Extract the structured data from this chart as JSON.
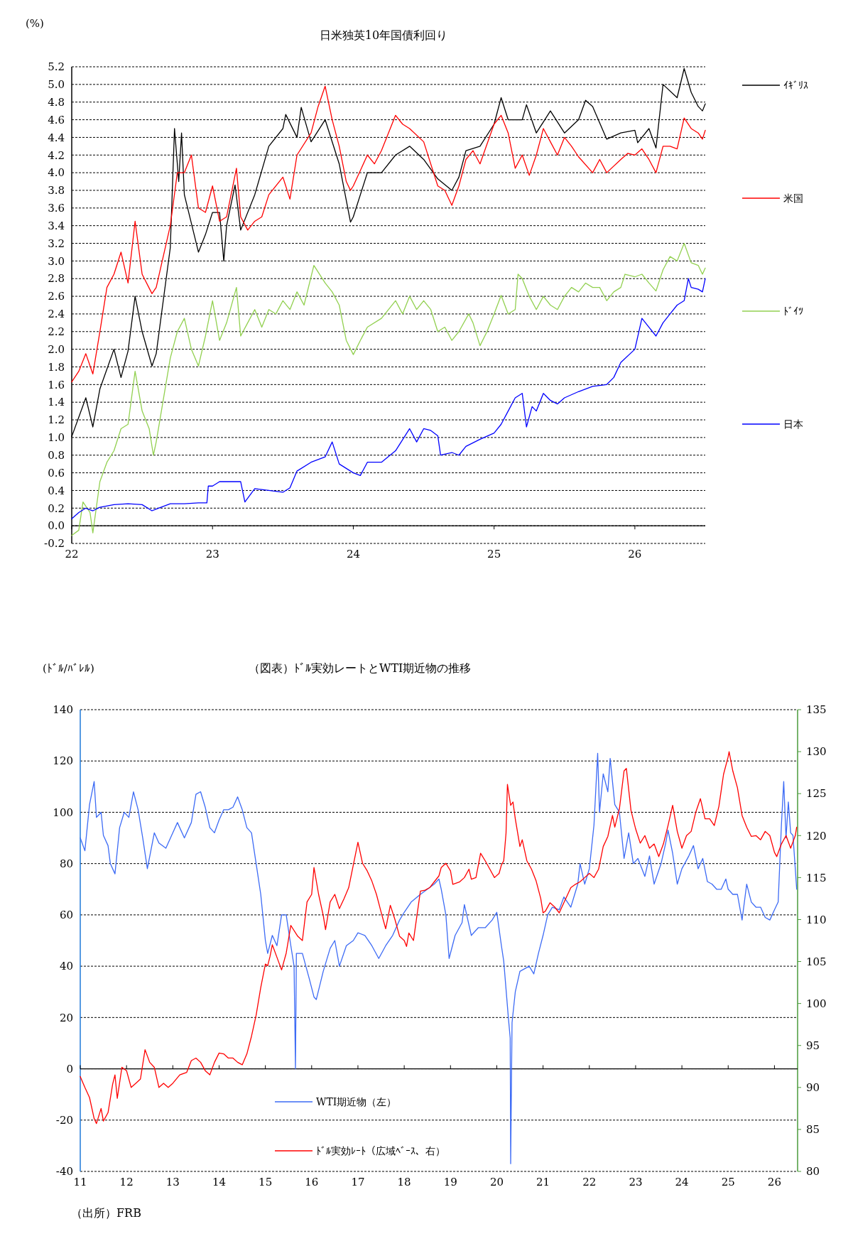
{
  "chart_data": [
    {
      "type": "line",
      "title": "日米独英10年国債利回り",
      "ylabel": "(%)",
      "xlim": [
        22,
        26.5
      ],
      "xticks": [
        22,
        23,
        24,
        25,
        26
      ],
      "ylim": [
        -0.2,
        5.2
      ],
      "yticks": [
        -0.2,
        {
          "value": 0,
          "label": "0.0"
        },
        0.2,
        0.4,
        0.6,
        0.8,
        {
          "value": 1,
          "label": "1.0"
        },
        1.2,
        1.4,
        1.6,
        1.8,
        {
          "value": 2,
          "label": "2.0"
        },
        2.2,
        2.4,
        2.6,
        2.8,
        {
          "value": 3,
          "label": "3.0"
        },
        3.2,
        3.4,
        3.6,
        3.8,
        {
          "value": 4,
          "label": "4.0"
        },
        4.2,
        4.4,
        4.6,
        4.8,
        {
          "value": 5,
          "label": "5.0"
        },
        5.2
      ],
      "grid": "y",
      "legend": "right",
      "marker": "none",
      "line_style": "solid",
      "series": [
        {
          "name": "ｲｷﾞﾘｽ",
          "color": "#000000",
          "x": [
            22.0,
            22.1,
            22.15,
            22.2,
            22.3,
            22.35,
            22.4,
            22.45,
            22.5,
            22.57,
            22.6,
            22.7,
            22.73,
            22.76,
            22.78,
            22.8,
            22.9,
            22.95,
            23.0,
            23.05,
            23.08,
            23.1,
            23.16,
            23.2,
            23.3,
            23.4,
            23.5,
            23.52,
            23.6,
            23.63,
            23.7,
            23.8,
            23.9,
            23.98,
            24.0,
            24.1,
            24.2,
            24.3,
            24.4,
            24.5,
            24.6,
            24.7,
            24.75,
            24.8,
            24.9,
            25.0,
            25.05,
            25.1,
            25.2,
            25.23,
            25.3,
            25.4,
            25.5,
            25.6,
            25.65,
            25.7,
            25.8,
            25.9,
            26.0,
            26.02,
            26.1,
            26.15,
            26.2,
            26.3,
            26.35,
            26.4,
            26.45,
            26.48,
            26.5
          ],
          "values": [
            1.01,
            1.45,
            1.12,
            1.55,
            2.0,
            1.68,
            1.98,
            2.6,
            2.2,
            1.81,
            1.95,
            3.15,
            4.5,
            3.9,
            4.45,
            3.75,
            3.1,
            3.3,
            3.55,
            3.55,
            3.0,
            3.4,
            3.86,
            3.35,
            3.75,
            4.3,
            4.5,
            4.66,
            4.4,
            4.74,
            4.35,
            4.6,
            4.1,
            3.44,
            3.5,
            4.0,
            4.0,
            4.2,
            4.3,
            4.15,
            3.93,
            3.8,
            3.95,
            4.25,
            4.3,
            4.55,
            4.85,
            4.6,
            4.6,
            4.77,
            4.45,
            4.7,
            4.45,
            4.6,
            4.82,
            4.75,
            4.38,
            4.45,
            4.48,
            4.34,
            4.5,
            4.28,
            5.0,
            4.85,
            5.18,
            4.91,
            4.75,
            4.7,
            4.78
          ]
        },
        {
          "name": "米国",
          "color": "#ff0000",
          "x": [
            22.0,
            22.05,
            22.1,
            22.15,
            22.2,
            22.25,
            22.3,
            22.35,
            22.4,
            22.45,
            22.5,
            22.57,
            22.6,
            22.7,
            22.75,
            22.8,
            22.85,
            22.9,
            22.95,
            23.0,
            23.05,
            23.1,
            23.17,
            23.2,
            23.25,
            23.3,
            23.35,
            23.4,
            23.5,
            23.55,
            23.6,
            23.7,
            23.75,
            23.8,
            23.85,
            23.9,
            23.95,
            23.98,
            24.0,
            24.1,
            24.15,
            24.2,
            24.3,
            24.35,
            24.4,
            24.5,
            24.6,
            24.65,
            24.7,
            24.75,
            24.8,
            24.85,
            24.9,
            25.0,
            25.05,
            25.1,
            25.15,
            25.2,
            25.25,
            25.3,
            25.35,
            25.4,
            25.45,
            25.5,
            25.55,
            25.6,
            25.7,
            25.75,
            25.8,
            25.9,
            25.95,
            26.0,
            26.05,
            26.1,
            26.15,
            26.2,
            26.25,
            26.3,
            26.35,
            26.4,
            26.45,
            26.48,
            26.5
          ],
          "values": [
            1.63,
            1.75,
            1.95,
            1.72,
            2.2,
            2.7,
            2.85,
            3.1,
            2.75,
            3.45,
            2.85,
            2.63,
            2.7,
            3.4,
            4.0,
            4.0,
            4.2,
            3.6,
            3.55,
            3.85,
            3.45,
            3.5,
            4.05,
            3.5,
            3.35,
            3.45,
            3.5,
            3.75,
            3.95,
            3.7,
            4.2,
            4.45,
            4.75,
            4.98,
            4.6,
            4.3,
            3.9,
            3.8,
            3.85,
            4.2,
            4.1,
            4.25,
            4.65,
            4.55,
            4.5,
            4.35,
            3.85,
            3.8,
            3.63,
            3.85,
            4.15,
            4.25,
            4.1,
            4.55,
            4.65,
            4.45,
            4.05,
            4.2,
            3.97,
            4.2,
            4.5,
            4.35,
            4.2,
            4.4,
            4.3,
            4.18,
            4.0,
            4.15,
            4.0,
            4.15,
            4.22,
            4.2,
            4.27,
            4.15,
            4.0,
            4.3,
            4.3,
            4.27,
            4.62,
            4.5,
            4.45,
            4.38,
            4.48
          ]
        },
        {
          "name": "ﾄﾞｲﾂ",
          "color": "#92d050",
          "x": [
            22.0,
            22.05,
            22.08,
            22.13,
            22.15,
            22.2,
            22.25,
            22.3,
            22.35,
            22.4,
            22.45,
            22.5,
            22.55,
            22.58,
            22.6,
            22.7,
            22.75,
            22.8,
            22.85,
            22.9,
            22.95,
            23.0,
            23.05,
            23.1,
            23.17,
            23.2,
            23.25,
            23.3,
            23.35,
            23.4,
            23.45,
            23.5,
            23.55,
            23.6,
            23.65,
            23.72,
            23.8,
            23.85,
            23.9,
            23.95,
            24.0,
            24.05,
            24.1,
            24.2,
            24.3,
            24.35,
            24.4,
            24.45,
            24.5,
            24.55,
            24.6,
            24.65,
            24.7,
            24.75,
            24.82,
            24.85,
            24.9,
            24.95,
            25.0,
            25.05,
            25.1,
            25.15,
            25.17,
            25.2,
            25.25,
            25.3,
            25.35,
            25.4,
            25.45,
            25.5,
            25.55,
            25.6,
            25.65,
            25.7,
            25.75,
            25.8,
            25.85,
            25.9,
            25.93,
            26.0,
            26.05,
            26.1,
            26.15,
            26.2,
            26.25,
            26.3,
            26.35,
            26.4,
            26.45,
            26.48,
            26.5
          ],
          "values": [
            -0.11,
            -0.05,
            0.27,
            0.15,
            -0.08,
            0.5,
            0.72,
            0.85,
            1.1,
            1.15,
            1.75,
            1.3,
            1.1,
            0.8,
            0.95,
            1.9,
            2.2,
            2.35,
            2.0,
            1.81,
            2.15,
            2.55,
            2.1,
            2.3,
            2.7,
            2.15,
            2.3,
            2.45,
            2.25,
            2.45,
            2.4,
            2.55,
            2.45,
            2.65,
            2.5,
            2.95,
            2.75,
            2.65,
            2.5,
            2.1,
            1.94,
            2.1,
            2.25,
            2.35,
            2.55,
            2.4,
            2.6,
            2.45,
            2.55,
            2.45,
            2.2,
            2.25,
            2.1,
            2.2,
            2.4,
            2.3,
            2.04,
            2.2,
            2.4,
            2.61,
            2.4,
            2.45,
            2.85,
            2.8,
            2.6,
            2.45,
            2.6,
            2.5,
            2.45,
            2.6,
            2.7,
            2.65,
            2.75,
            2.7,
            2.7,
            2.55,
            2.65,
            2.7,
            2.85,
            2.82,
            2.85,
            2.75,
            2.66,
            2.9,
            3.05,
            3.0,
            3.2,
            2.98,
            2.95,
            2.85,
            2.92
          ]
        },
        {
          "name": "日本",
          "color": "#0000ff",
          "x": [
            22.0,
            22.05,
            22.1,
            22.15,
            22.2,
            22.3,
            22.4,
            22.5,
            22.57,
            22.6,
            22.7,
            22.8,
            22.9,
            22.96,
            22.97,
            23.0,
            23.05,
            23.1,
            23.2,
            23.23,
            23.3,
            23.4,
            23.5,
            23.55,
            23.6,
            23.7,
            23.8,
            23.85,
            23.9,
            24.0,
            24.05,
            24.1,
            24.2,
            24.3,
            24.4,
            24.45,
            24.5,
            24.55,
            24.6,
            24.62,
            24.7,
            24.75,
            24.8,
            24.9,
            25.0,
            25.05,
            25.1,
            25.15,
            25.2,
            25.23,
            25.27,
            25.3,
            25.35,
            25.4,
            25.45,
            25.5,
            25.6,
            25.7,
            25.8,
            25.85,
            25.9,
            26.0,
            26.05,
            26.1,
            26.15,
            26.2,
            26.25,
            26.3,
            26.35,
            26.38,
            26.4,
            26.45,
            26.48,
            26.5
          ],
          "values": [
            0.08,
            0.15,
            0.2,
            0.17,
            0.21,
            0.24,
            0.25,
            0.24,
            0.17,
            0.19,
            0.25,
            0.25,
            0.26,
            0.26,
            0.45,
            0.45,
            0.5,
            0.5,
            0.5,
            0.27,
            0.42,
            0.4,
            0.38,
            0.43,
            0.62,
            0.72,
            0.78,
            0.95,
            0.7,
            0.6,
            0.57,
            0.72,
            0.72,
            0.85,
            1.1,
            0.95,
            1.1,
            1.08,
            1.02,
            0.8,
            0.83,
            0.8,
            0.9,
            0.98,
            1.05,
            1.15,
            1.3,
            1.45,
            1.5,
            1.12,
            1.35,
            1.3,
            1.5,
            1.42,
            1.38,
            1.45,
            1.52,
            1.58,
            1.6,
            1.68,
            1.85,
            2.0,
            2.35,
            2.25,
            2.15,
            2.3,
            2.4,
            2.5,
            2.55,
            2.8,
            2.7,
            2.68,
            2.65,
            2.8
          ]
        }
      ]
    },
    {
      "type": "line",
      "title": "（図表）ﾄﾞﾙ実効レートとWTI期近物の推移",
      "ylabel": "(ﾄﾞﾙ/ﾊﾞﾚﾙ)",
      "annotations": [
        "（出所）FRB"
      ],
      "xlim": [
        11,
        26.5
      ],
      "xticks": [
        11,
        12,
        13,
        14,
        15,
        16,
        17,
        18,
        19,
        20,
        21,
        22,
        23,
        24,
        25,
        26
      ],
      "ylim": [
        -40,
        140
      ],
      "yticks": [
        -40,
        -20,
        0,
        20,
        40,
        60,
        80,
        100,
        120,
        140
      ],
      "y2lim": [
        80,
        135
      ],
      "y2ticks": [
        80,
        85,
        90,
        95,
        100,
        105,
        110,
        115,
        120,
        125,
        130,
        135
      ],
      "grid": "y",
      "legend": "bottom left",
      "marker": "none",
      "line_style": "solid",
      "series": [
        {
          "name": "WTI期近物（左）",
          "color": "#3d6bf5",
          "x": [
            11.0,
            11.1,
            11.2,
            11.3,
            11.35,
            11.45,
            11.5,
            11.6,
            11.65,
            11.75,
            11.85,
            11.95,
            12.05,
            12.15,
            12.25,
            12.35,
            12.45,
            12.6,
            12.7,
            12.85,
            13.0,
            13.1,
            13.25,
            13.4,
            13.5,
            13.6,
            13.7,
            13.8,
            13.9,
            14.0,
            14.1,
            14.2,
            14.3,
            14.4,
            14.5,
            14.6,
            14.7,
            14.8,
            14.9,
            15.0,
            15.05,
            15.15,
            15.25,
            15.35,
            15.45,
            15.55,
            15.62,
            15.65,
            15.67,
            15.8,
            15.95,
            16.05,
            16.1,
            16.25,
            16.4,
            16.5,
            16.6,
            16.75,
            16.9,
            17.0,
            17.15,
            17.3,
            17.45,
            17.6,
            17.75,
            17.9,
            18.0,
            18.15,
            18.35,
            18.5,
            18.65,
            18.75,
            18.8,
            18.9,
            18.97,
            19.1,
            19.25,
            19.3,
            19.45,
            19.6,
            19.75,
            19.9,
            20.0,
            20.1,
            20.15,
            20.25,
            20.29,
            20.3,
            20.33,
            20.4,
            20.5,
            20.7,
            20.8,
            20.9,
            21.0,
            21.1,
            21.2,
            21.35,
            21.45,
            21.6,
            21.75,
            21.8,
            21.9,
            22.0,
            22.1,
            22.18,
            22.22,
            22.3,
            22.4,
            22.45,
            22.55,
            22.65,
            22.75,
            22.85,
            22.95,
            23.05,
            23.2,
            23.3,
            23.4,
            23.55,
            23.65,
            23.7,
            23.8,
            23.9,
            24.0,
            24.15,
            24.25,
            24.35,
            24.45,
            24.55,
            24.65,
            24.75,
            24.85,
            24.95,
            25.0,
            25.1,
            25.2,
            25.3,
            25.4,
            25.5,
            25.6,
            25.7,
            25.8,
            25.9,
            26.0,
            26.08,
            26.15,
            26.2,
            26.25,
            26.3,
            26.35,
            26.4,
            26.45,
            26.48
          ],
          "values": [
            90,
            85,
            103,
            112,
            98,
            100,
            91,
            87,
            80,
            76,
            94,
            100,
            98,
            108,
            101,
            90,
            78,
            92,
            88,
            86,
            92,
            96,
            90,
            96,
            107,
            108,
            102,
            94,
            92,
            97,
            101,
            101,
            102,
            106,
            101,
            94,
            92,
            80,
            68,
            50,
            45,
            52,
            48,
            60,
            60,
            48,
            40,
            0,
            45,
            45,
            35,
            28,
            27,
            38,
            47,
            50,
            40,
            48,
            50,
            53,
            52,
            48,
            43,
            48,
            52,
            58,
            61,
            65,
            68,
            70,
            72,
            74,
            70,
            60,
            43,
            52,
            57,
            64,
            52,
            55,
            55,
            58,
            61,
            48,
            42,
            20,
            12,
            -37,
            18,
            30,
            38,
            40,
            37,
            45,
            52,
            60,
            63,
            62,
            67,
            63,
            72,
            80,
            72,
            78,
            95,
            123,
            100,
            115,
            108,
            121,
            103,
            100,
            82,
            92,
            80,
            82,
            75,
            83,
            72,
            80,
            88,
            93,
            84,
            72,
            78,
            83,
            87,
            78,
            82,
            73,
            72,
            70,
            70,
            74,
            70,
            68,
            68,
            58,
            72,
            65,
            63,
            63,
            59,
            58,
            62,
            65,
            95,
            112,
            90,
            104,
            92,
            91,
            78,
            70
          ]
        },
        {
          "name": "ﾄﾞﾙ実効ﾚｰﾄ（広域ﾍﾞｰｽ、右）",
          "color": "#ff0000",
          "axis": "y2",
          "x": [
            11.0,
            11.1,
            11.2,
            11.3,
            11.35,
            11.45,
            11.5,
            11.6,
            11.7,
            11.75,
            11.8,
            11.9,
            12.0,
            12.1,
            12.2,
            12.3,
            12.4,
            12.5,
            12.6,
            12.7,
            12.8,
            12.9,
            13.0,
            13.15,
            13.3,
            13.4,
            13.5,
            13.6,
            13.7,
            13.8,
            13.9,
            14.0,
            14.1,
            14.2,
            14.3,
            14.4,
            14.5,
            14.6,
            14.7,
            14.8,
            14.9,
            15.0,
            15.05,
            15.1,
            15.15,
            15.25,
            15.35,
            15.45,
            15.55,
            15.7,
            15.8,
            15.9,
            16.0,
            16.05,
            16.15,
            16.25,
            16.3,
            16.4,
            16.5,
            16.6,
            16.7,
            16.8,
            17.0,
            17.1,
            17.2,
            17.3,
            17.4,
            17.5,
            17.6,
            17.7,
            17.8,
            17.9,
            18.0,
            18.05,
            18.1,
            18.2,
            18.25,
            18.35,
            18.45,
            18.55,
            18.65,
            18.75,
            18.8,
            18.9,
            19.0,
            19.05,
            19.2,
            19.3,
            19.4,
            19.45,
            19.55,
            19.65,
            19.75,
            19.85,
            19.95,
            20.05,
            20.1,
            20.15,
            20.2,
            20.23,
            20.3,
            20.35,
            20.4,
            20.5,
            20.55,
            20.65,
            20.75,
            20.85,
            20.95,
            21.0,
            21.05,
            21.15,
            21.25,
            21.35,
            21.45,
            21.6,
            21.7,
            21.8,
            21.9,
            22.0,
            22.1,
            22.2,
            22.3,
            22.4,
            22.5,
            22.55,
            22.65,
            22.75,
            22.8,
            22.9,
            23.0,
            23.1,
            23.2,
            23.3,
            23.4,
            23.5,
            23.6,
            23.7,
            23.8,
            23.9,
            24.0,
            24.1,
            24.2,
            24.3,
            24.4,
            24.5,
            24.6,
            24.7,
            24.8,
            24.9,
            25.0,
            25.02,
            25.1,
            25.2,
            25.3,
            25.4,
            25.5,
            25.6,
            25.7,
            25.8,
            25.9,
            26.0,
            26.05,
            26.15,
            26.25,
            26.35,
            26.45,
            26.48
          ],
          "values": [
            91.3,
            90,
            88.8,
            86.3,
            85.7,
            87.5,
            86,
            87,
            90.4,
            91.5,
            88.7,
            92.4,
            92,
            90,
            90.5,
            91,
            94.5,
            93,
            92.4,
            90,
            90.5,
            90,
            90.5,
            91.5,
            91.8,
            93.2,
            93.5,
            93,
            92,
            91.5,
            93,
            94.1,
            94,
            93.5,
            93.5,
            93,
            92.7,
            94,
            96.1,
            98.6,
            101.9,
            104.7,
            104.5,
            105.6,
            107,
            105.5,
            104,
            106,
            109.3,
            108,
            107.5,
            112.1,
            113,
            116.2,
            113,
            110.5,
            108.8,
            112.1,
            113,
            111.3,
            112.5,
            113.8,
            119.2,
            116.7,
            115.8,
            114.6,
            113,
            110.9,
            108.9,
            111.7,
            110,
            108,
            107.5,
            106.8,
            108.4,
            107.5,
            109.5,
            113.4,
            113.5,
            113.8,
            114.5,
            115.2,
            116.2,
            116.7,
            115.8,
            114.2,
            114.5,
            115,
            116,
            114.8,
            115,
            117.9,
            117,
            116,
            115,
            115.5,
            116.5,
            117,
            120.3,
            126.1,
            123.6,
            124,
            122,
            118.7,
            119.5,
            117,
            116,
            114.6,
            112.5,
            110.8,
            111,
            112,
            111.5,
            110.8,
            112,
            113.8,
            114.2,
            114.5,
            115,
            115.5,
            115,
            116,
            118.7,
            119.9,
            122.4,
            121,
            123.2,
            127.7,
            128,
            123,
            120.8,
            119.1,
            120,
            118.5,
            119,
            117.5,
            119,
            121.2,
            123.6,
            120.5,
            118.5,
            120,
            120.5,
            122.8,
            124.4,
            122,
            122,
            121.2,
            123.5,
            127.3,
            129.4,
            130,
            127.7,
            125.7,
            122.4,
            121,
            119.9,
            120,
            119.5,
            120.5,
            120,
            118,
            117.5,
            119,
            120,
            118.5,
            120,
            121
          ]
        }
      ]
    }
  ]
}
